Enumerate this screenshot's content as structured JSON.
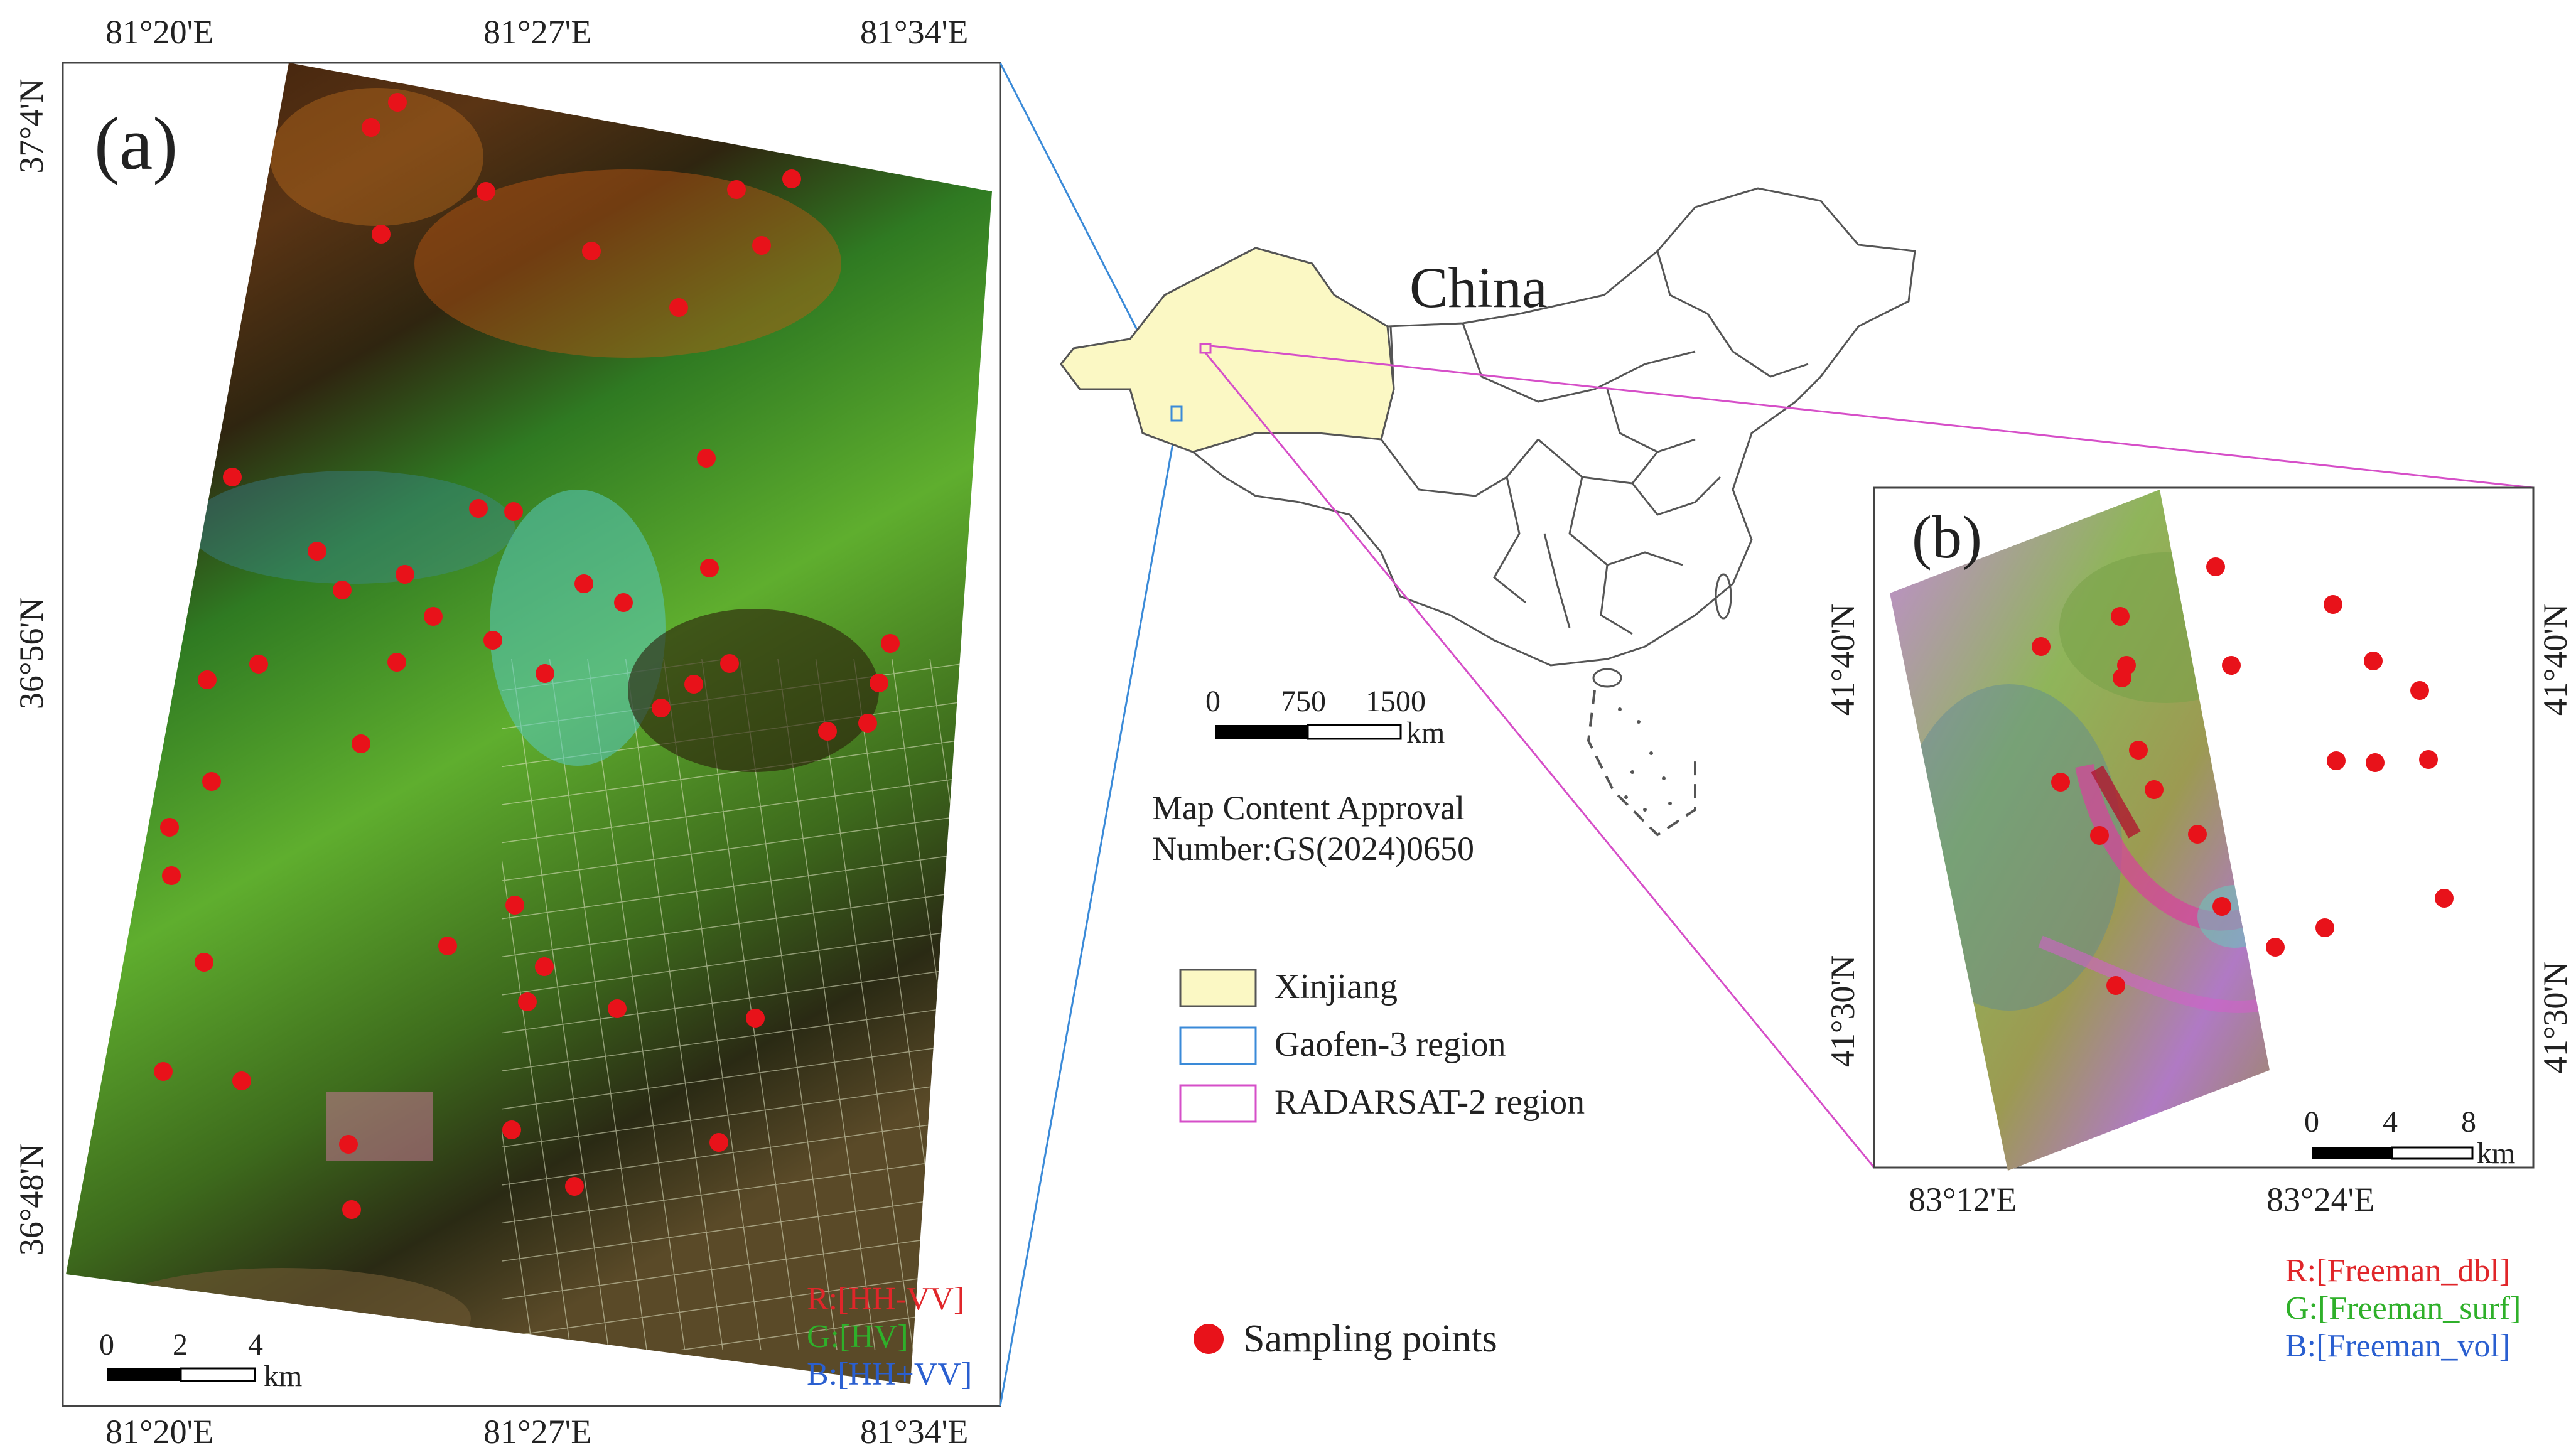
{
  "panel_a": {
    "label": "(a)",
    "top_lon_ticks": [
      "81°20'E",
      "81°27'E",
      "81°34'E"
    ],
    "bottom_lon_ticks": [
      "81°20'E",
      "81°27'E",
      "81°34'E"
    ],
    "left_lat_ticks": [
      "37°4'N",
      "36°56'N",
      "36°48'N"
    ],
    "scale_numbers": [
      "0",
      "2",
      "4"
    ],
    "scale_unit": "km",
    "composite": [
      {
        "text": "R:[HH-VV]",
        "color": "#e0262a"
      },
      {
        "text": "G:[HV]",
        "color": "#2fb02a"
      },
      {
        "text": "B:[HH+VV]",
        "color": "#2a5fd0"
      }
    ]
  },
  "panel_b": {
    "label": "(b)",
    "bottom_lon_ticks": [
      "83°12'E",
      "83°24'E"
    ],
    "left_lat_ticks": [
      "41°40'N",
      "41°30'N"
    ],
    "right_lat_ticks": [
      "41°40'N",
      "41°30'N"
    ],
    "scale_numbers": [
      "0",
      "4",
      "8"
    ],
    "scale_unit": "km",
    "composite": [
      {
        "text": "R:[Freeman_dbl]",
        "color": "#e0262a"
      },
      {
        "text": "G:[Freeman_surf]",
        "color": "#2fb02a"
      },
      {
        "text": "B:[Freeman_vol]",
        "color": "#2a5fd0"
      }
    ]
  },
  "overview": {
    "country_label": "China",
    "scale_numbers": [
      "0",
      "750",
      "1500"
    ],
    "scale_unit": "km",
    "approval_line1": "Map Content Approval",
    "approval_line2": "Number:GS(2024)0650"
  },
  "legend": {
    "items": [
      {
        "label": "Xinjiang",
        "fill": "#fbf8c4",
        "stroke": "#555555"
      },
      {
        "label": "Gaofen-3 region",
        "fill": "#ffffff",
        "stroke": "#3a8ad8"
      },
      {
        "label": "RADARSAT-2 region",
        "fill": "#ffffff",
        "stroke": "#d64fc8"
      }
    ],
    "sampling_label": "Sampling points",
    "sampling_color": "#e8121a"
  }
}
